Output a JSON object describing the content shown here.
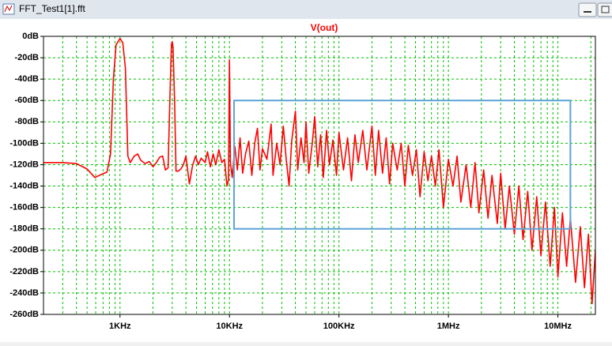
{
  "window_title": "FFT_Test1[1].fft",
  "chart_data": {
    "type": "line",
    "log_x": true,
    "grid": true,
    "minor_grid": true,
    "grid_color": "#00c000",
    "xlim": [
      200,
      22000000
    ],
    "ylim": [
      -260,
      0
    ],
    "xticks": [
      {
        "value": 1000,
        "label": "1KHz"
      },
      {
        "value": 10000,
        "label": "10KHz"
      },
      {
        "value": 100000,
        "label": "100KHz"
      },
      {
        "value": 1000000,
        "label": "1MHz"
      },
      {
        "value": 10000000,
        "label": "10MHz"
      }
    ],
    "yticks": [
      {
        "value": 0,
        "label": "0dB"
      },
      {
        "value": -20,
        "label": "-20dB"
      },
      {
        "value": -40,
        "label": "-40dB"
      },
      {
        "value": -60,
        "label": "-60dB"
      },
      {
        "value": -80,
        "label": "-80dB"
      },
      {
        "value": -100,
        "label": "-100dB"
      },
      {
        "value": -120,
        "label": "-120dB"
      },
      {
        "value": -140,
        "label": "-140dB"
      },
      {
        "value": -160,
        "label": "-160dB"
      },
      {
        "value": -180,
        "label": "-180dB"
      },
      {
        "value": -200,
        "label": "-200dB"
      },
      {
        "value": -220,
        "label": "-220dB"
      },
      {
        "value": -240,
        "label": "-240dB"
      },
      {
        "value": -260,
        "label": "-260dB"
      }
    ],
    "highlight_box": {
      "x": [
        11000,
        13000000
      ],
      "y": [
        -180,
        -60
      ],
      "color": "#5ba3d9"
    },
    "x": [
      200,
      300,
      400,
      500,
      590,
      680,
      760,
      820,
      870,
      920,
      1000,
      1060,
      1120,
      1180,
      1240,
      1350,
      1450,
      1550,
      1700,
      1850,
      2000,
      2150,
      2300,
      2450,
      2600,
      2750,
      2850,
      2950,
      3000,
      3050,
      3150,
      3250,
      3400,
      3600,
      3800,
      4000,
      4300,
      4600,
      4900,
      5200,
      5500,
      6000,
      6300,
      6700,
      7100,
      7500,
      8000,
      8500,
      9000,
      9500,
      9800,
      10000,
      10200,
      10600,
      11200,
      11800,
      12500,
      13200,
      14000,
      15000,
      16000,
      17000,
      18000,
      19000,
      20000,
      22000,
      24000,
      25000,
      27000,
      29000,
      31000,
      33000,
      35000,
      37000,
      40000,
      42000,
      45000,
      48000,
      50000,
      53000,
      57000,
      60000,
      64000,
      68000,
      72000,
      77000,
      82000,
      88000,
      95000,
      100000,
      110000,
      120000,
      130000,
      140000,
      150000,
      165000,
      180000,
      200000,
      215000,
      230000,
      250000,
      270000,
      290000,
      310000,
      340000,
      370000,
      400000,
      430000,
      470000,
      510000,
      550000,
      600000,
      650000,
      700000,
      760000,
      820000,
      900000,
      1000000,
      1100000,
      1200000,
      1300000,
      1450000,
      1600000,
      1750000,
      1900000,
      2100000,
      2300000,
      2500000,
      2800000,
      3000000,
      3300000,
      3600000,
      4000000,
      4400000,
      4800000,
      5300000,
      5800000,
      6400000,
      7000000,
      7700000,
      8500000,
      9300000,
      10000000,
      11000000,
      12000000,
      13000000,
      14500000,
      16000000,
      17500000,
      19000000,
      20500000,
      22000000
    ],
    "series": [
      {
        "name": "V(out)",
        "color": "#ff0000",
        "values": [
          -118,
          -118,
          -119,
          -124,
          -132,
          -129,
          -127,
          -110,
          -40,
          -8,
          -2,
          -6,
          -30,
          -112,
          -118,
          -112,
          -110,
          -116,
          -119,
          -117,
          -122,
          -118,
          -113,
          -112,
          -125,
          -123,
          -60,
          -8,
          -5,
          -10,
          -60,
          -126,
          -126,
          -124,
          -120,
          -112,
          -138,
          -121,
          -112,
          -120,
          -114,
          -118,
          -108,
          -122,
          -110,
          -120,
          -106,
          -118,
          -115,
          -140,
          -134,
          -22,
          -118,
          -132,
          -103,
          -125,
          -95,
          -128,
          -110,
          -98,
          -130,
          -100,
          -86,
          -125,
          -105,
          -115,
          -82,
          -130,
          -100,
          -120,
          -84,
          -115,
          -140,
          -98,
          -70,
          -125,
          -95,
          -118,
          -80,
          -128,
          -100,
          -75,
          -122,
          -92,
          -132,
          -88,
          -120,
          -97,
          -130,
          -90,
          -125,
          -95,
          -135,
          -92,
          -118,
          -88,
          -125,
          -84,
          -130,
          -88,
          -128,
          -95,
          -138,
          -100,
          -125,
          -100,
          -140,
          -102,
          -130,
          -106,
          -150,
          -108,
          -135,
          -112,
          -140,
          -106,
          -160,
          -115,
          -140,
          -112,
          -155,
          -120,
          -160,
          -118,
          -165,
          -125,
          -170,
          -130,
          -175,
          -128,
          -180,
          -140,
          -185,
          -140,
          -190,
          -145,
          -200,
          -150,
          -205,
          -155,
          -215,
          -160,
          -225,
          -165,
          -215,
          -170,
          -230,
          -178,
          -235,
          -185,
          -250,
          -200
        ]
      }
    ]
  }
}
